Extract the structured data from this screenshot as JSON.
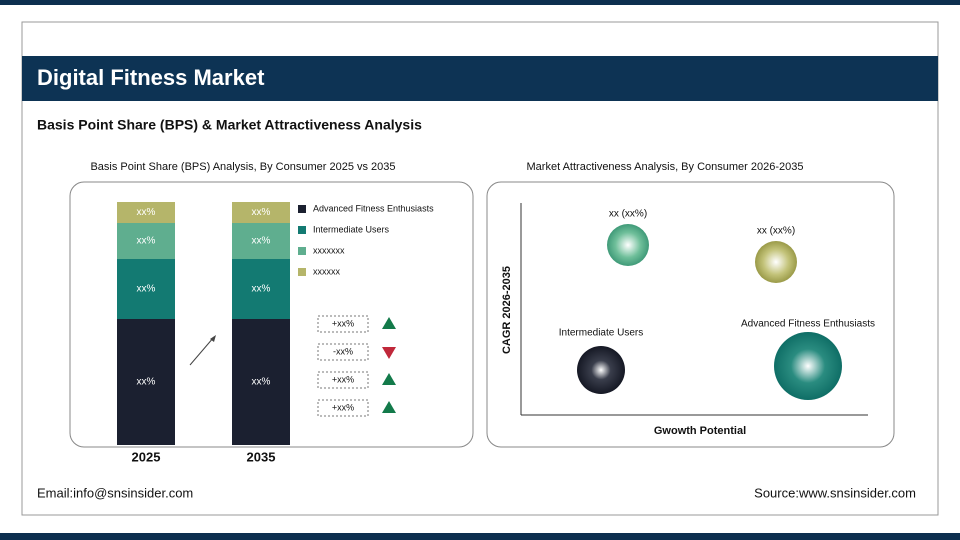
{
  "header": {
    "title": "Digital Fitness Market",
    "subtitle": "Basis Point Share (BPS) & Market Attractiveness Analysis"
  },
  "left": {
    "title": "Basis Point Share (BPS) Analysis, By Consumer 2025 vs 2035",
    "legend": [
      "Advanced Fitness Enthusiasts",
      "Intermediate Users",
      "xxxxxxx",
      "xxxxxx"
    ],
    "bars": [
      {
        "year": "2025",
        "labels": [
          "xx%",
          "xx%",
          "xx%",
          "xx%"
        ]
      },
      {
        "year": "2035",
        "labels": [
          "xx%",
          "xx%",
          "xx%",
          "xx%"
        ]
      }
    ],
    "changes": [
      "+xx%",
      "-xx%",
      "+xx%",
      "+xx%"
    ]
  },
  "right": {
    "title": "Market Attractiveness Analysis, By Consumer 2026-2035",
    "y_axis": "CAGR 2026-2035",
    "x_axis": "Gwowth Potential",
    "bubbles": [
      "xx (xx%)",
      "xx (xx%)",
      "Intermediate Users",
      "Advanced Fitness Enthusiasts"
    ]
  },
  "footer": {
    "email": "Email:info@snsinsider.com",
    "source": "Source:www.snsinsider.com"
  }
}
